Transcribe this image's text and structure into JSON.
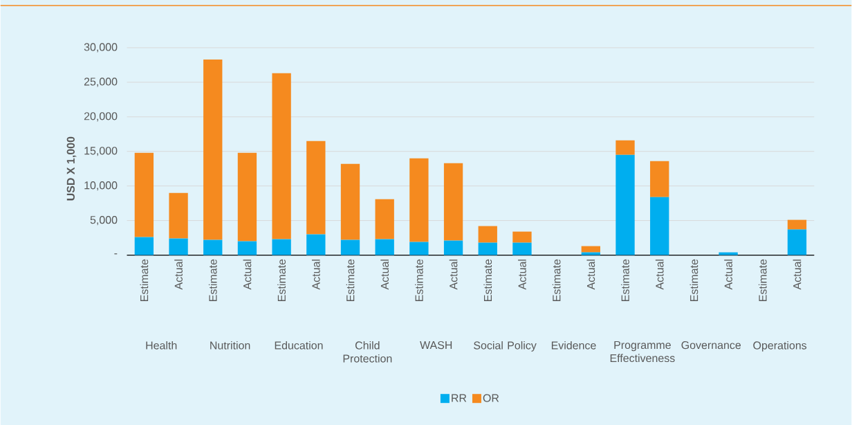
{
  "chart_data": {
    "type": "bar",
    "stacked": true,
    "ylabel": "USD X 1,000",
    "categories": [
      "Estimate",
      "Actual",
      "Estimate",
      "Actual",
      "Estimate",
      "Actual",
      "Estimate",
      "Actual",
      "Estimate",
      "Actual",
      "Estimate",
      "Actual",
      "Estimate",
      "Actual",
      "Estimate",
      "Actual",
      "Estimate",
      "Actual",
      "Estimate",
      "Actual"
    ],
    "series": [
      {
        "name": "RR",
        "color": "#00aeef",
        "values": [
          2600,
          2400,
          2200,
          2000,
          2300,
          3000,
          2200,
          2300,
          1900,
          2100,
          1800,
          1800,
          0,
          400,
          14500,
          8400,
          0,
          400,
          0,
          3700
        ]
      },
      {
        "name": "OR",
        "color": "#f58a1f",
        "values": [
          12200,
          6600,
          26100,
          12800,
          24000,
          13500,
          11000,
          5800,
          12100,
          11200,
          2400,
          1600,
          0,
          900,
          2100,
          5200,
          0,
          0,
          0,
          1400
        ]
      }
    ],
    "ylim": [
      0,
      30000
    ],
    "yticks": [
      {
        "value": 0,
        "label": "-"
      },
      {
        "value": 5000,
        "label": "5,000"
      },
      {
        "value": 10000,
        "label": "10,000"
      },
      {
        "value": 15000,
        "label": "15,000"
      },
      {
        "value": 20000,
        "label": "20,000"
      },
      {
        "value": 25000,
        "label": "25,000"
      },
      {
        "value": 30000,
        "label": "30,000"
      }
    ],
    "grid": "y",
    "legend": "bottom",
    "annotations": [
      "Health",
      "Nutrition",
      "Education",
      "Child Protection",
      "WASH",
      "Social Policy",
      "Evidence",
      "Programme Effectiveness",
      "Governance",
      "Operations"
    ]
  }
}
